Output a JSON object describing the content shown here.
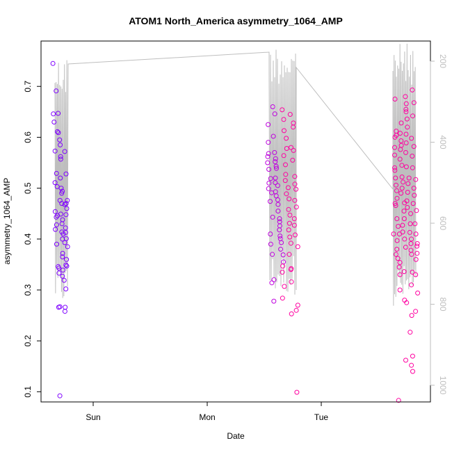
{
  "chart_data": {
    "type": "scatter",
    "title": "ATOM1 North_America asymmetry_1064_AMP",
    "xlabel": "Date",
    "ylabel": "asymmetry_1064_AMP",
    "x_ticks": [
      "Sun",
      "Mon",
      "Tue"
    ],
    "y_ticks": [
      "0.1",
      "0.2",
      "0.3",
      "0.4",
      "0.5",
      "0.6",
      "0.7"
    ],
    "ylim": [
      0.08,
      0.77
    ],
    "secondary_axis": {
      "ticks": [
        "200",
        "400",
        "600",
        "800",
        "1000"
      ],
      "reversed": true,
      "color": "#bebebe"
    },
    "colors": {
      "group1": "#7f00ff",
      "group2": "#bf00df",
      "group3": "#ff00a0",
      "line": "#bebebe"
    },
    "series": [
      {
        "values": [
          0.745,
          0.691,
          0.646,
          0.63,
          0.573,
          0.529,
          0.511,
          0.503,
          0.454,
          0.446,
          0.443,
          0.428,
          0.419,
          0.39,
          0.346,
          0.343,
          0.333,
          0.267,
          0.266,
          0.092,
          0.647,
          0.611,
          0.609,
          0.595,
          0.585,
          0.562,
          0.557,
          0.52,
          0.5,
          0.494,
          0.49,
          0.476,
          0.47,
          0.449,
          0.438,
          0.43,
          0.414,
          0.41,
          0.4,
          0.372,
          0.365,
          0.339,
          0.327,
          0.319,
          0.302,
          0.266,
          0.572,
          0.528,
          0.47,
          0.468,
          0.422,
          0.413,
          0.393,
          0.385,
          0.349,
          0.258,
          0.476,
          0.46,
          0.448,
          0.401,
          0.36,
          0.347
        ]
      },
      {
        "values": [
          0.625,
          0.59,
          0.568,
          0.562,
          0.55,
          0.537,
          0.519,
          0.51,
          0.499,
          0.491,
          0.474,
          0.443,
          0.41,
          0.39,
          0.37,
          0.32,
          0.314,
          0.278,
          0.66,
          0.646,
          0.602,
          0.57,
          0.558,
          0.552,
          0.543,
          0.539,
          0.52,
          0.511,
          0.505,
          0.493,
          0.485,
          0.477,
          0.468,
          0.455,
          0.44,
          0.434,
          0.426,
          0.418,
          0.406,
          0.401,
          0.393,
          0.38,
          0.369,
          0.355,
          0.347,
          0.335,
          0.307,
          0.284,
          0.654,
          0.635,
          0.613,
          0.598,
          0.578,
          0.564,
          0.546,
          0.527,
          0.515,
          0.501,
          0.489,
          0.479,
          0.458,
          0.447,
          0.431,
          0.418,
          0.404,
          0.392,
          0.37,
          0.342,
          0.34,
          0.316,
          0.253,
          0.645,
          0.628,
          0.62,
          0.58,
          0.574,
          0.555,
          0.523,
          0.508,
          0.498,
          0.476,
          0.463,
          0.44,
          0.427,
          0.408,
          0.385,
          0.27,
          0.26,
          0.099
        ]
      },
      {
        "values": [
          0.675,
          0.6,
          0.535,
          0.47,
          0.41,
          0.37,
          0.612,
          0.604,
          0.58,
          0.565,
          0.54,
          0.52,
          0.506,
          0.495,
          0.48,
          0.466,
          0.44,
          0.425,
          0.41,
          0.397,
          0.38,
          0.362,
          0.354,
          0.345,
          0.33,
          0.3,
          0.083,
          0.628,
          0.608,
          0.593,
          0.584,
          0.576,
          0.557,
          0.545,
          0.522,
          0.512,
          0.5,
          0.49,
          0.471,
          0.455,
          0.44,
          0.427,
          0.414,
          0.4,
          0.384,
          0.336,
          0.28,
          0.275,
          0.162,
          0.68,
          0.666,
          0.655,
          0.65,
          0.636,
          0.62,
          0.606,
          0.589,
          0.57,
          0.542,
          0.52,
          0.509,
          0.492,
          0.475,
          0.462,
          0.45,
          0.43,
          0.413,
          0.4,
          0.391,
          0.378,
          0.37,
          0.335,
          0.31,
          0.25,
          0.217,
          0.17,
          0.152,
          0.14,
          0.693,
          0.668,
          0.642,
          0.598,
          0.582,
          0.563,
          0.54,
          0.517,
          0.5,
          0.486,
          0.47,
          0.456,
          0.43,
          0.41,
          0.391,
          0.386,
          0.372,
          0.36,
          0.33,
          0.294,
          0.258
        ]
      }
    ]
  }
}
